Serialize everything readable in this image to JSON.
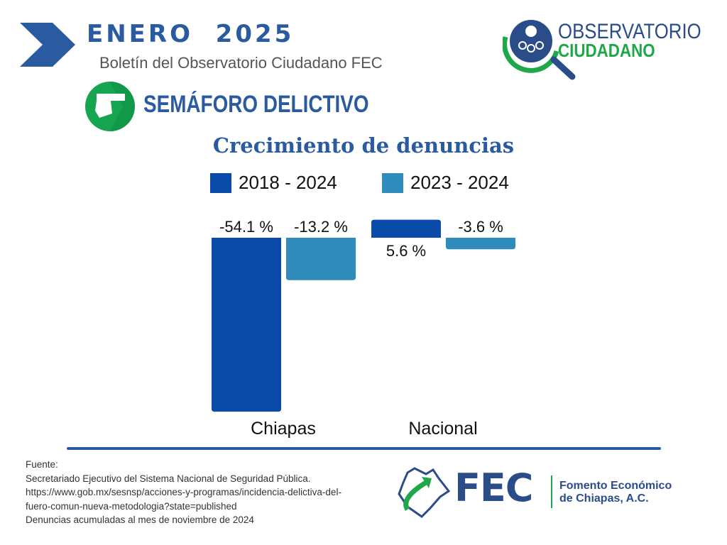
{
  "header": {
    "title": "ENERO  2025",
    "subtitle": "Boletín del Observatorio Ciudadano FEC",
    "section": "SEMÁFORO DELICTIVO",
    "logo_text": [
      "OBSERVATORIO",
      "CIUDADANO"
    ]
  },
  "colors": {
    "brand": "#2a5aa0",
    "series1": "#0a4aa8",
    "series2": "#2e8bbb",
    "green": "#1fa84a"
  },
  "chart_data": {
    "type": "bar",
    "title": "Crecimiento de denuncias",
    "categories": [
      "Chiapas",
      "Nacional"
    ],
    "series": [
      {
        "name": "2018 - 2024",
        "values": [
          -54.1,
          5.6
        ],
        "labels": [
          "-54.1 %",
          "5.6 %"
        ]
      },
      {
        "name": "2023 - 2024",
        "values": [
          -13.2,
          -3.6
        ],
        "labels": [
          "-13.2 %",
          "-3.6 %"
        ]
      }
    ],
    "legend": "top",
    "grid": false
  },
  "footer": {
    "lines": [
      "Fuente:",
      "Secretariado Ejecutivo del Sistema Nacional de Seguridad Pública.",
      "https://www.gob.mx/sesnsp/acciones-y-programas/incidencia-delictiva-del-",
      "fuero-comun-nueva-metodologia?state=published",
      "Denuncias acumuladas al mes de noviembre de 2024"
    ],
    "logo": "FEC",
    "org": [
      "Fomento Económico",
      "de Chiapas, A.C."
    ]
  }
}
